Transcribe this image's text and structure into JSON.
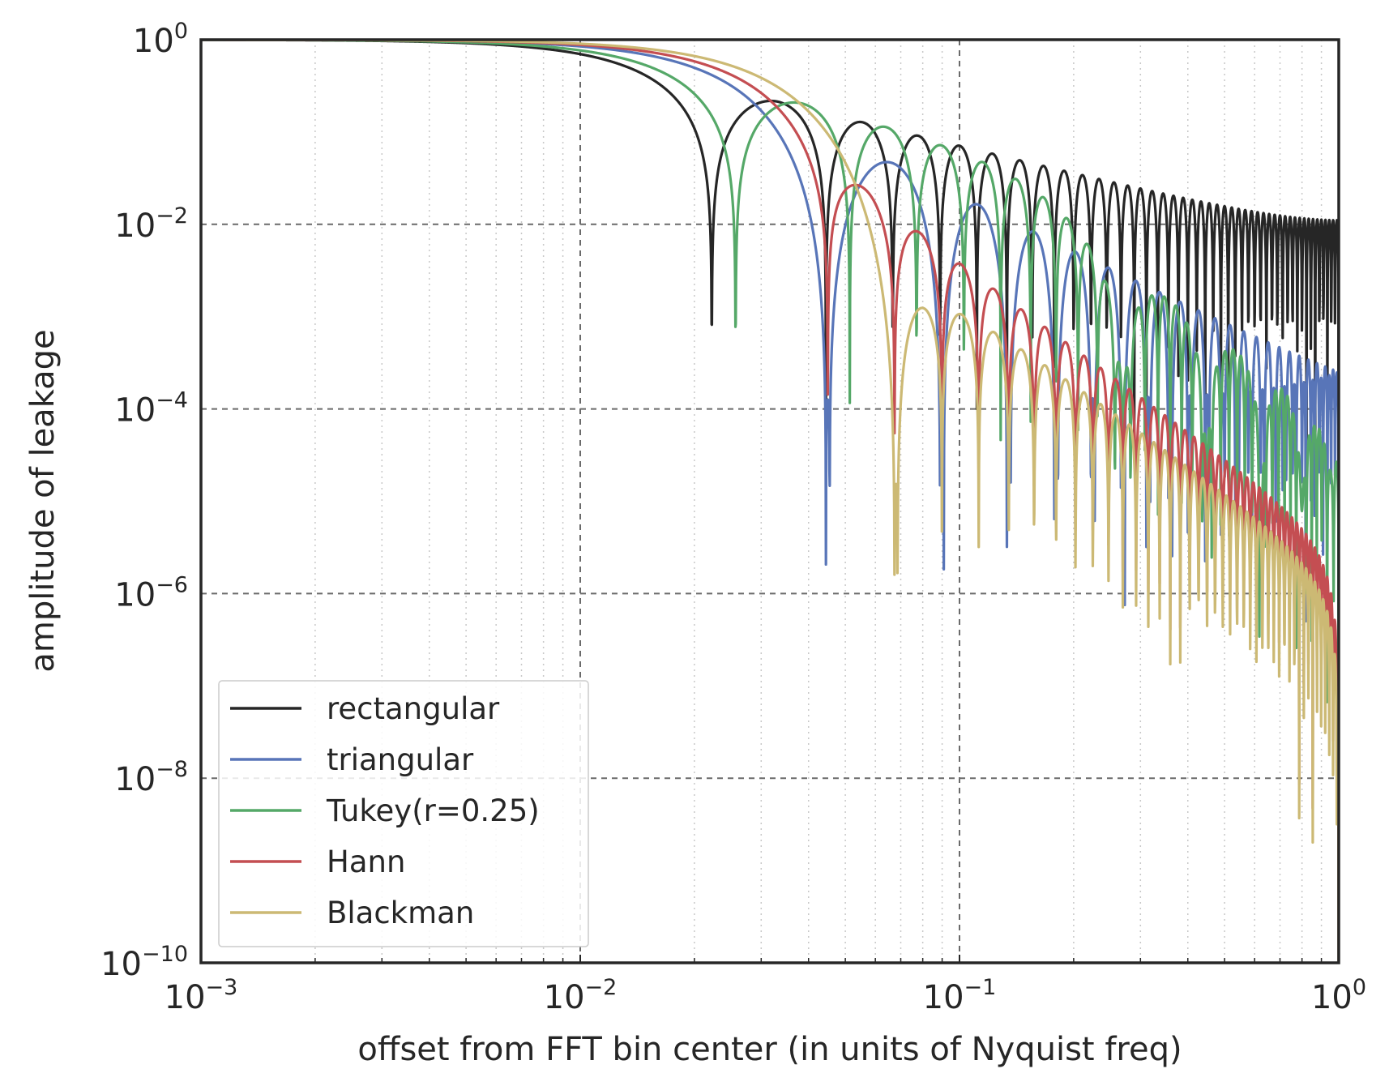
{
  "chart_data": {
    "type": "line",
    "title": "",
    "xlabel": "offset from FFT bin center (in units of Nyquist freq)",
    "ylabel": "amplitude of leakage",
    "x_scale": "log",
    "y_scale": "log",
    "xlim": [
      0.001,
      1
    ],
    "ylim": [
      1e-10,
      1
    ],
    "x_ticks": [
      {
        "base": "10",
        "exp": "−3",
        "value": 0.001
      },
      {
        "base": "10",
        "exp": "−2",
        "value": 0.01
      },
      {
        "base": "10",
        "exp": "−1",
        "value": 0.1
      },
      {
        "base": "10",
        "exp": "0",
        "value": 1
      }
    ],
    "y_ticks": [
      {
        "base": "10",
        "exp": "0",
        "value": 1
      },
      {
        "base": "10",
        "exp": "−2",
        "value": 0.01
      },
      {
        "base": "10",
        "exp": "−4",
        "value": 0.0001
      },
      {
        "base": "10",
        "exp": "−6",
        "value": 1e-06
      },
      {
        "base": "10",
        "exp": "−8",
        "value": 1e-08
      },
      {
        "base": "10",
        "exp": "−10",
        "value": 1e-10
      }
    ],
    "grid": true,
    "legend_position": "lower-left",
    "series": [
      {
        "name": "rectangular",
        "color": "#262626",
        "window": "rect",
        "N": 90
      },
      {
        "name": "triangular",
        "color": "#5875b8",
        "window": "tri",
        "N": 90
      },
      {
        "name": "Tukey(r=0.25)",
        "color": "#55a868",
        "window": "tukey",
        "N": 90
      },
      {
        "name": "Hann",
        "color": "#c44e52",
        "window": "hann",
        "N": 90
      },
      {
        "name": "Blackman",
        "color": "#ccb974",
        "window": "blackman",
        "N": 90
      }
    ]
  }
}
